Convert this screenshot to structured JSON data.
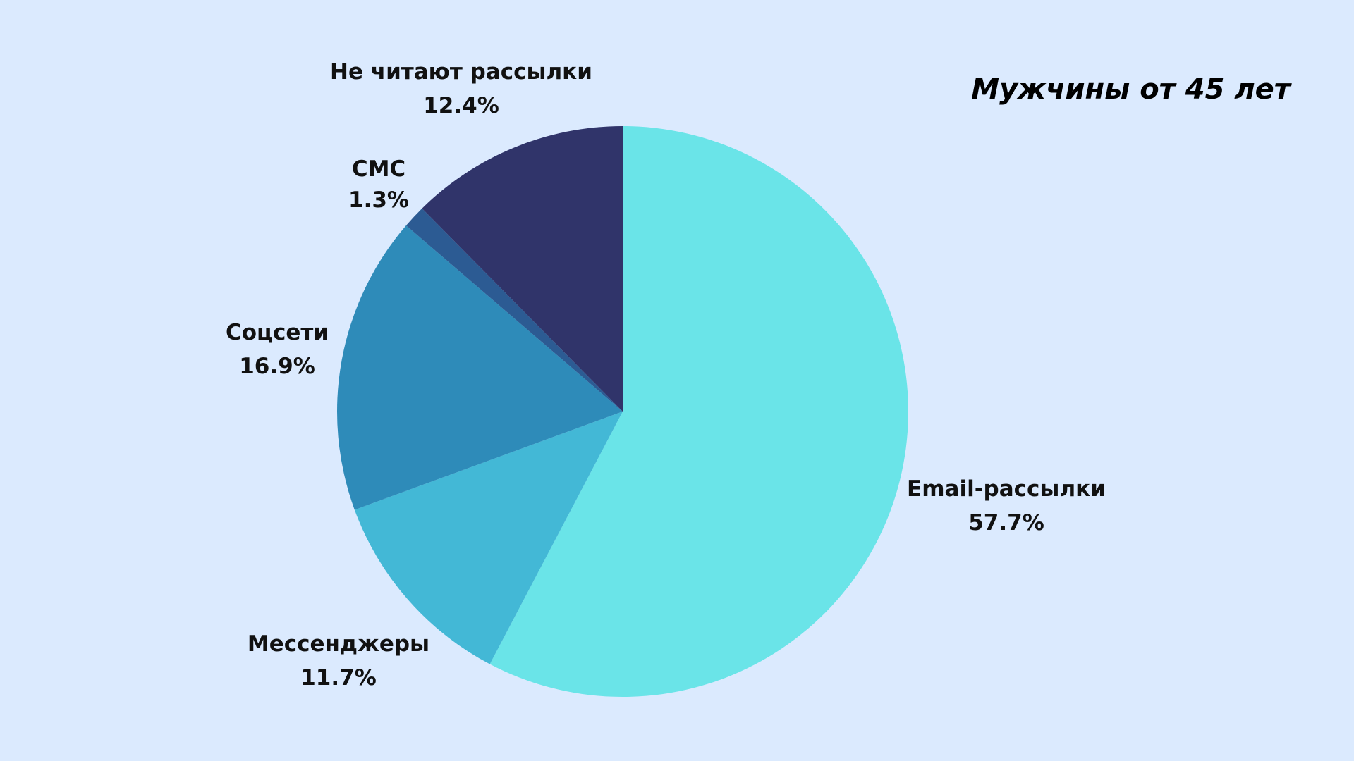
{
  "chart_data": {
    "type": "pie",
    "title": "Мужчины от 45 лет",
    "start_angle": "12 o'clock",
    "direction": "clockwise",
    "slices": [
      {
        "name": "Email-рассылки",
        "value": 57.7,
        "label": "57.7%",
        "color": "#6ae4e8"
      },
      {
        "name": "Мессенджеры",
        "value": 11.7,
        "label": "11.7%",
        "color": "#43b8d6"
      },
      {
        "name": "Соцсети",
        "value": 16.9,
        "label": "16.9%",
        "color": "#2e8bb9"
      },
      {
        "name": "СМС",
        "value": 1.3,
        "label": "1.3%",
        "color": "#2c5b93"
      },
      {
        "name": "Не читают рассылки",
        "value": 12.4,
        "label": "12.4%",
        "color": "#30346a"
      }
    ]
  },
  "background": "#dbeafe"
}
